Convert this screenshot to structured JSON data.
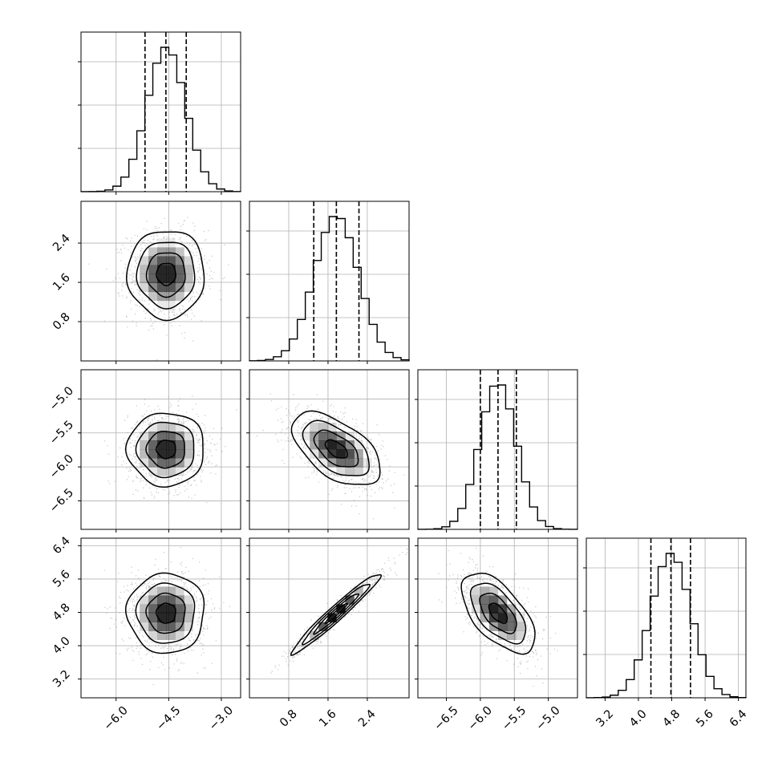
{
  "chart_data": {
    "type": "corner",
    "n_params": 4,
    "params": [
      {
        "range": [
          -7.0,
          -2.45
        ],
        "ticks": [
          -6.0,
          -4.5,
          -3.0
        ],
        "tick_labels": [
          "−6.0",
          "−4.5",
          "−3.0"
        ],
        "quantiles": [
          -5.175,
          -4.58,
          -4.0
        ],
        "mean": -4.57,
        "sd": 0.55
      },
      {
        "range": [
          0.0,
          3.25
        ],
        "ticks": [
          0.8,
          1.6,
          2.4
        ],
        "tick_labels": [
          "0.8",
          "1.6",
          "2.4"
        ],
        "quantiles": [
          1.31,
          1.77,
          2.23
        ],
        "mean": 1.77,
        "sd": 0.45
      },
      {
        "range": [
          -6.92,
          -4.57
        ],
        "ticks": [
          -6.5,
          -6.0,
          -5.5,
          -5.0
        ],
        "tick_labels": [
          "−6.5",
          "−6.0",
          "−5.5",
          "−5.0"
        ],
        "quantiles": [
          -6.0,
          -5.74,
          -5.47
        ],
        "mean": -5.74,
        "sd": 0.27
      },
      {
        "range": [
          2.75,
          6.58
        ],
        "ticks": [
          3.2,
          4.0,
          4.8,
          5.6,
          6.4
        ],
        "tick_labels": [
          "3.2",
          "4.0",
          "4.8",
          "5.6",
          "6.4"
        ],
        "quantiles": [
          4.3,
          4.78,
          5.25
        ],
        "mean": 4.78,
        "sd": 0.48
      }
    ],
    "correlations": [
      [
        1.0,
        0.0,
        0.0,
        0.0
      ],
      [
        0.0,
        1.0,
        -0.55,
        0.97
      ],
      [
        0.0,
        -0.55,
        1.0,
        -0.6
      ],
      [
        0.0,
        0.97,
        -0.6,
        1.0
      ]
    ],
    "histogram_bins": 20,
    "contour_levels": [
      0.5,
      1.0,
      1.5,
      2.0
    ],
    "grid": true,
    "colors": {
      "lines": "#000000",
      "points": "#7f7f7f",
      "grid": "#b0b0b0",
      "density": "#000000"
    }
  }
}
